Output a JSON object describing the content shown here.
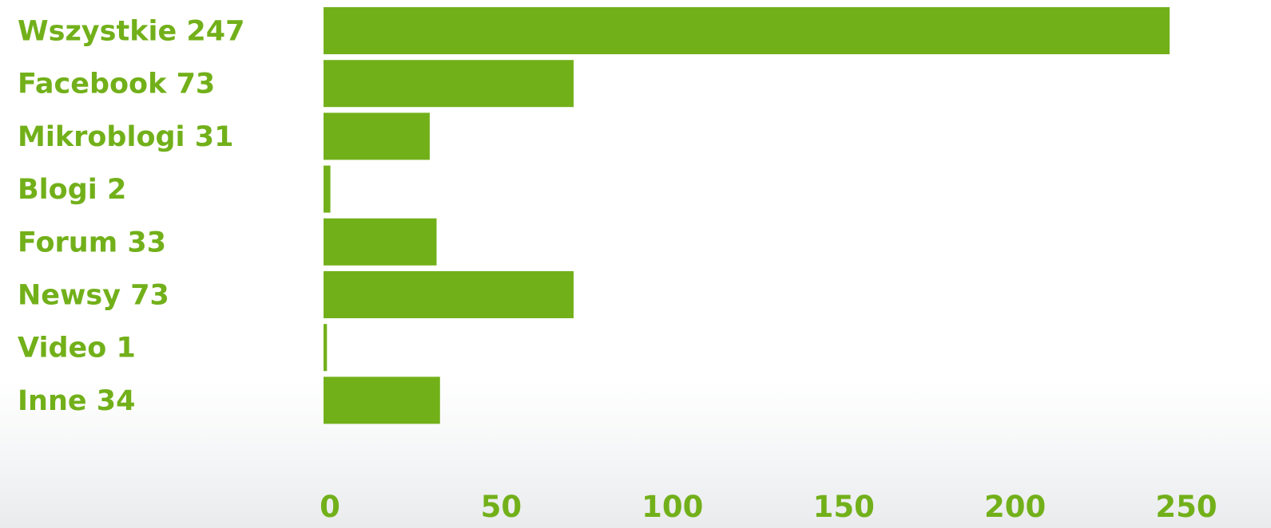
{
  "chart_data": {
    "type": "bar",
    "orientation": "horizontal",
    "categories": [
      "Wszystkie 247",
      "Facebook 73",
      "Mikroblogi 31",
      "Blogi 2",
      "Forum 33",
      "Newsy 73",
      "Video 1",
      "Inne 34"
    ],
    "values": [
      247,
      73,
      31,
      2,
      33,
      73,
      1,
      34
    ],
    "xlim": [
      0,
      250
    ],
    "xticks": [
      "0",
      "50",
      "100",
      "150",
      "200",
      "250"
    ],
    "grid": false,
    "legend": "none",
    "colors": {
      "bar": "#72b01a",
      "label": "#72b01a"
    }
  }
}
